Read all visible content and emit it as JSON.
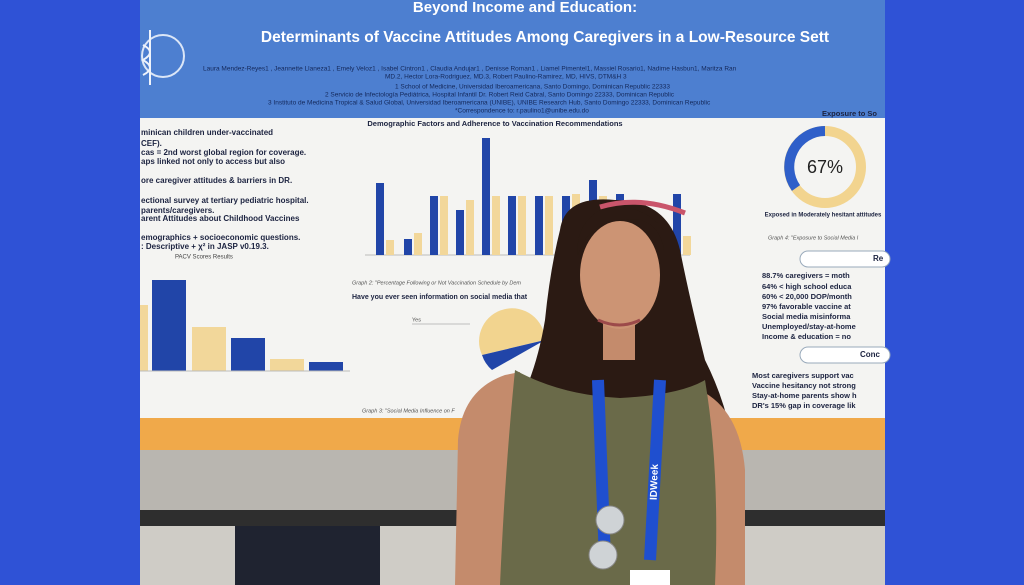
{
  "poster": {
    "header": {
      "title": "Beyond Income and Education:",
      "subtitle": "Determinants of Vaccine Attitudes Among Caregivers in a Low-Resource Sett",
      "authors": [
        "Laura Mendez-Reyes1 , Jeannette Llaneza1 , Emely Veloz1 , Isabel Cintron1 , Claudia Andujar1 , Denisse Roman1 , Liamel Pimentel1, Massiel Rosario1, Nadime Hasbun1, Maritza Ran",
        "MD.2, Hector Lora-Rodriguez, MD.3, Robert Paulino-Ramirez, MD, HIVS, DTM&H 3"
      ],
      "affiliations": [
        "1 School of Medicine, Universidad Iberoamericana, Santo Domingo, Dominican Republic 22333",
        "2 Servicio de Infectología Pediátrica, Hospital Infantil Dr. Robert Reid Cabral, Santo Domingo 22333, Dominican Republic",
        "3 Instituto de Medicina Tropical & Salud Global, Universidad Iberoamericana (UNIBE), UNIBE Research Hub, Santo Domingo 22333, Dominican Republic"
      ],
      "correspondence": "*Correspondence to: r.paulino1@unibe.edu.do"
    },
    "left": {
      "lines": [
        "minican children under-vaccinated",
        "CEF).",
        "cas = 2nd worst global region for coverage.",
        "aps linked not only to access but also",
        "ore caregiver attitudes & barriers in DR.",
        "ectional survey at tertiary pediatric hospital.",
        "parents/caregivers.",
        "arent   Attitudes   about   Childhood   Vaccines",
        "emographics + socioeconomic questions.",
        ": Descriptive + χ² in JASP v0.19.3."
      ],
      "chart_title": "PACV Scores Results"
    },
    "center": {
      "chart_title": "Demographic Factors and Adherence to Vaccination Recommendations",
      "caption": "Graph 2: \"Percentage Following or Not Vaccination Schedule by Dem",
      "question": "Have you ever seen information on social media that",
      "answer": "Yes",
      "caption2": "Graph 3: \"Social Media Influence on F"
    },
    "right": {
      "heading": "Exposure to So",
      "percent": "67%",
      "donut_label": "Exposed in Moderately hesitant attitudes",
      "caption": "Graph 4: \"Exposure to Social Media I",
      "results_heading": "Re",
      "results": [
        "88.7% caregivers = moth",
        "64% < high school educa",
        "60% < 20,000 DOP/month",
        "97% favorable vaccine at",
        "Social media misinforma",
        "Unemployed/stay-at-home",
        "Income & education = no"
      ],
      "conclusions_heading": "Conc",
      "conclusions": [
        "Most caregivers support vac",
        "Vaccine hesitancy not strong",
        "Stay-at-home parents show h",
        "DR's 15% gap in coverage lik"
      ]
    },
    "lanyard": "IDWeek"
  }
}
